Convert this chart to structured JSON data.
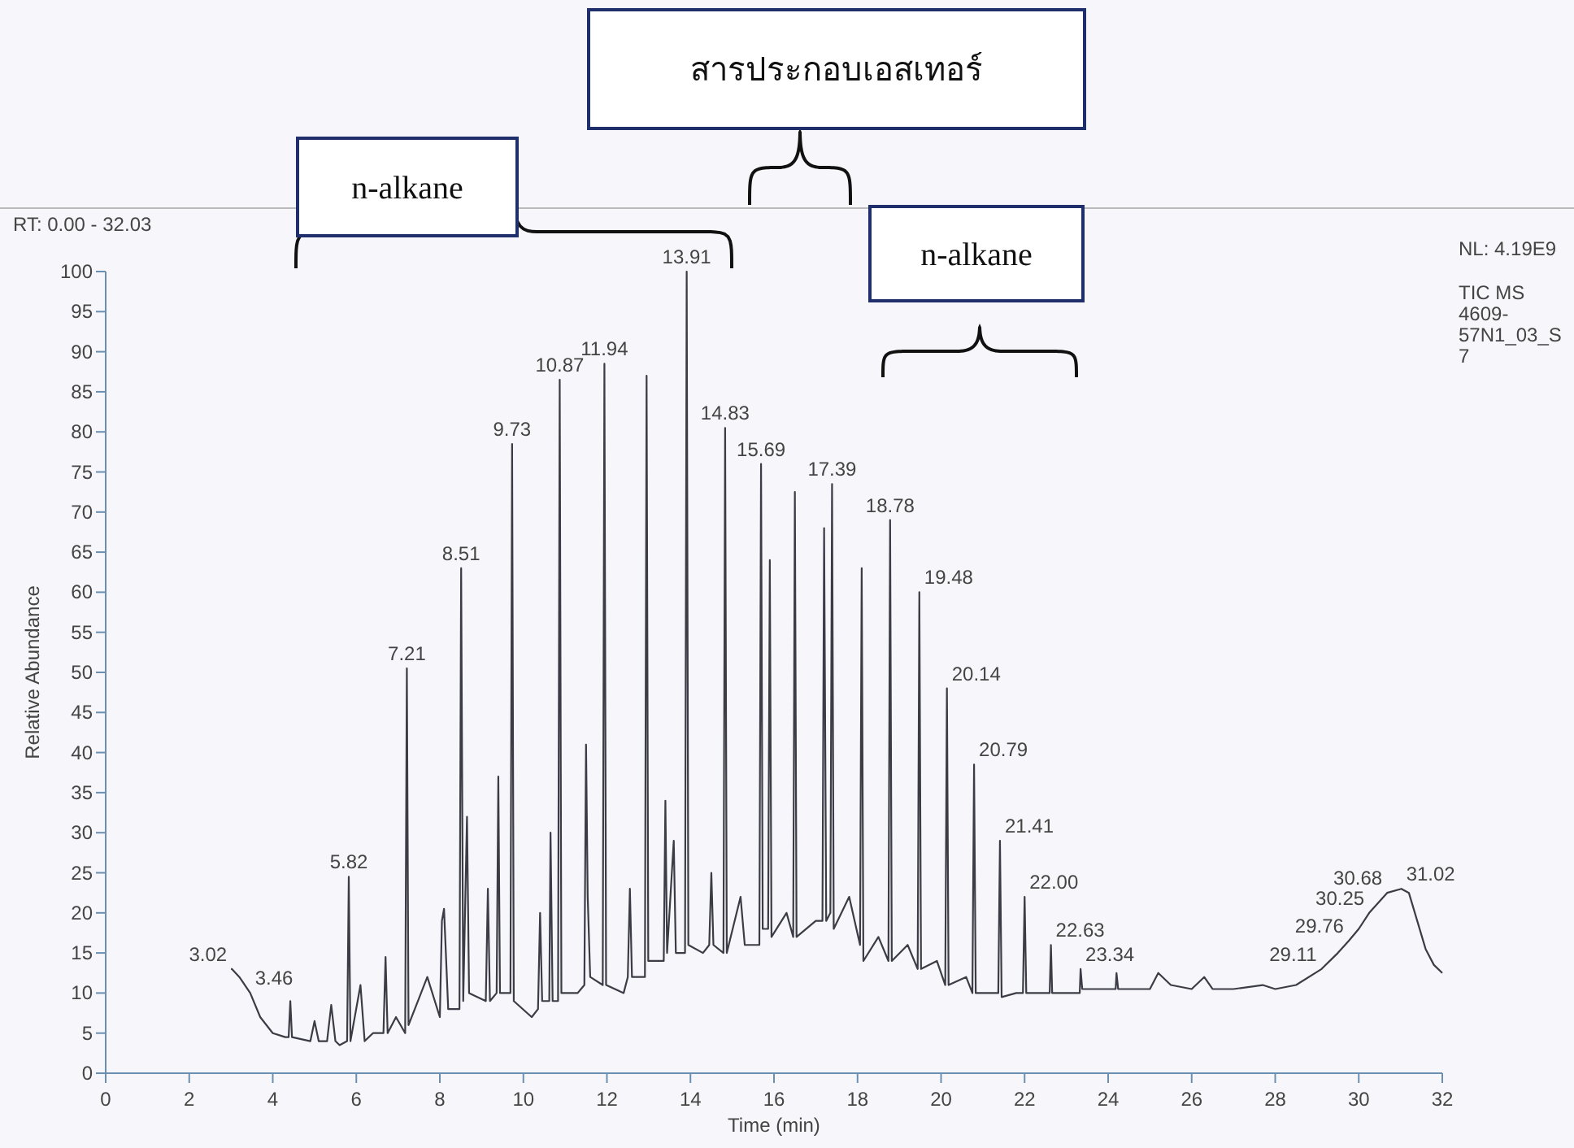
{
  "chart_data": {
    "type": "line",
    "xlabel": "Time (min)",
    "ylabel": "Relative Abundance",
    "xlim": [
      0,
      32
    ],
    "ylim": [
      0,
      100
    ],
    "xticks": [
      0,
      2,
      4,
      6,
      8,
      10,
      12,
      14,
      16,
      18,
      20,
      22,
      24,
      26,
      28,
      30,
      32
    ],
    "yticks": [
      0,
      5,
      10,
      15,
      20,
      25,
      30,
      35,
      40,
      45,
      50,
      55,
      60,
      65,
      70,
      75,
      80,
      85,
      90,
      95,
      100
    ],
    "series": [
      {
        "color": "#3c3c46",
        "x": [
          3.0,
          3.02,
          3.2,
          3.46,
          3.7,
          4.0,
          4.3,
          4.38,
          4.42,
          4.46,
          4.9,
          5.0,
          5.1,
          5.3,
          5.4,
          5.5,
          5.6,
          5.78,
          5.82,
          5.86,
          6.1,
          6.2,
          6.4,
          6.65,
          6.7,
          6.75,
          6.95,
          7.17,
          7.21,
          7.25,
          7.7,
          8.0,
          8.05,
          8.1,
          8.2,
          8.47,
          8.51,
          8.56,
          8.65,
          8.7,
          9.1,
          9.15,
          9.2,
          9.36,
          9.4,
          9.44,
          9.69,
          9.73,
          9.77,
          10.2,
          10.35,
          10.4,
          10.45,
          10.62,
          10.65,
          10.7,
          10.83,
          10.87,
          10.91,
          11.3,
          11.46,
          11.5,
          11.54,
          11.6,
          11.9,
          11.94,
          11.98,
          12.4,
          12.5,
          12.55,
          12.6,
          12.91,
          12.95,
          12.99,
          13.36,
          13.4,
          13.44,
          13.6,
          13.65,
          13.87,
          13.91,
          13.95,
          14.3,
          14.45,
          14.5,
          14.55,
          14.79,
          14.83,
          14.87,
          15.2,
          15.3,
          15.65,
          15.69,
          15.73,
          15.86,
          15.9,
          15.94,
          16.3,
          16.46,
          16.5,
          16.54,
          17.0,
          17.16,
          17.2,
          17.25,
          17.35,
          17.39,
          17.43,
          17.8,
          18.06,
          18.1,
          18.14,
          18.5,
          18.74,
          18.78,
          18.82,
          19.2,
          19.44,
          19.48,
          19.52,
          19.9,
          20.1,
          20.14,
          20.18,
          20.6,
          20.75,
          20.79,
          20.83,
          21.2,
          21.37,
          21.41,
          21.45,
          21.8,
          21.96,
          22.0,
          22.04,
          22.5,
          22.6,
          22.63,
          22.66,
          23.2,
          23.32,
          23.34,
          23.38,
          24.0,
          24.18,
          24.2,
          24.24,
          25.0,
          25.2,
          25.5,
          26.0,
          26.3,
          26.5,
          27.0,
          27.7,
          28.0,
          28.5,
          29.11,
          29.5,
          29.76,
          30.0,
          30.25,
          30.68,
          31.02,
          31.2,
          31.4,
          31.6,
          31.8,
          32.0
        ],
        "values": [
          13,
          13,
          12,
          10,
          7,
          5,
          4.5,
          4.5,
          9,
          4.5,
          4,
          6.5,
          4,
          4,
          8.5,
          4,
          3.5,
          4,
          24.5,
          4,
          11,
          4,
          5,
          5,
          14.5,
          5,
          7,
          5,
          50.5,
          6,
          12,
          7,
          19,
          20.5,
          8,
          8,
          63,
          9,
          32,
          10,
          9,
          23,
          9,
          10,
          37,
          10,
          10,
          78.5,
          9,
          7,
          8,
          20,
          9,
          9,
          30,
          9,
          9,
          86.5,
          10,
          10,
          11,
          41,
          22,
          12,
          11,
          88.5,
          11,
          10,
          12,
          23,
          12,
          12,
          87,
          14,
          14,
          34,
          15,
          29,
          15,
          15,
          100,
          16,
          15,
          16,
          25,
          16,
          15,
          80.5,
          15,
          22,
          16,
          16,
          76,
          18,
          18,
          64,
          17,
          20,
          17,
          72.5,
          17,
          19,
          19,
          68,
          19,
          20,
          73.5,
          18,
          22,
          16,
          63,
          14,
          17,
          14,
          69,
          14,
          16,
          13,
          60,
          13,
          14,
          11,
          48,
          11,
          12,
          10,
          38.5,
          10,
          10,
          10,
          29,
          9.5,
          10,
          10,
          22,
          10,
          10,
          10,
          16,
          10,
          10,
          10,
          13,
          10.5,
          10.5,
          10.5,
          12.5,
          10.5,
          10.5,
          12.5,
          11,
          10.5,
          12,
          10.5,
          10.5,
          11,
          10.5,
          11,
          13,
          15,
          16.5,
          18,
          20,
          22.5,
          23,
          22.5,
          19,
          15.5,
          13.5,
          12.5
        ]
      }
    ],
    "annotations": [
      "n-alkane",
      "สารประกอบเอสเทอร์",
      "n-alkane",
      "RT: 0.00 - 32.03",
      "NL: 4.19E9",
      "TIC MS 4609-57N1_03_S7",
      {
        "text": "3.02",
        "x": 3.02,
        "y": 13
      },
      {
        "text": "3.46",
        "x": 3.46,
        "y": 10
      },
      {
        "text": "5.82",
        "x": 5.82,
        "y": 24.5
      },
      {
        "text": "7.21",
        "x": 7.21,
        "y": 50.5
      },
      {
        "text": "8.51",
        "x": 8.51,
        "y": 63
      },
      {
        "text": "9.73",
        "x": 9.73,
        "y": 78.5
      },
      {
        "text": "10.87",
        "x": 10.87,
        "y": 86.5
      },
      {
        "text": "11.94",
        "x": 11.94,
        "y": 88.5
      },
      {
        "text": "13.91",
        "x": 13.91,
        "y": 100
      },
      {
        "text": "14.83",
        "x": 14.83,
        "y": 80.5
      },
      {
        "text": "15.69",
        "x": 15.69,
        "y": 76
      },
      {
        "text": "17.39",
        "x": 17.39,
        "y": 73.5
      },
      {
        "text": "18.78",
        "x": 18.78,
        "y": 69
      },
      {
        "text": "19.48",
        "x": 19.48,
        "y": 60
      },
      {
        "text": "20.14",
        "x": 20.14,
        "y": 48
      },
      {
        "text": "20.79",
        "x": 20.79,
        "y": 38.5
      },
      {
        "text": "21.41",
        "x": 21.41,
        "y": 29
      },
      {
        "text": "22.00",
        "x": 22.0,
        "y": 22
      },
      {
        "text": "22.63",
        "x": 22.63,
        "y": 16
      },
      {
        "text": "23.34",
        "x": 23.34,
        "y": 13
      },
      {
        "text": "29.11",
        "x": 29.11,
        "y": 13
      },
      {
        "text": "29.76",
        "x": 29.76,
        "y": 16.5
      },
      {
        "text": "30.25",
        "x": 30.25,
        "y": 20
      },
      {
        "text": "30.68",
        "x": 30.68,
        "y": 22.5
      },
      {
        "text": "31.02",
        "x": 31.02,
        "y": 23
      }
    ]
  }
}
